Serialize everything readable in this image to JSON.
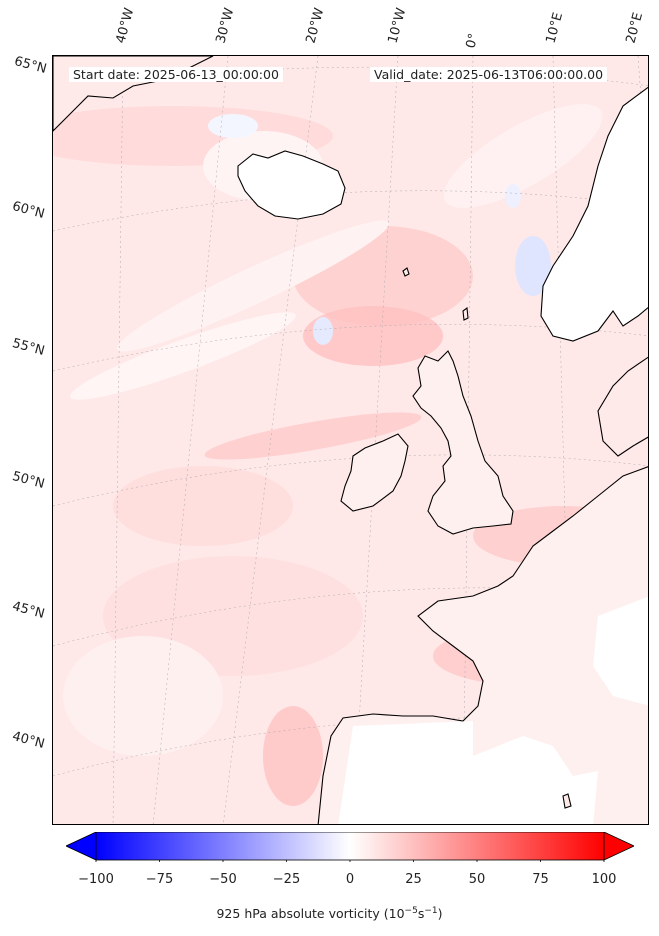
{
  "map": {
    "start_date": "Start date: 2025-06-13_00:00:00",
    "valid_date": "Valid_date: 2025-06-13T06:00:00.00",
    "lon_labels": [
      "40°W",
      "30°W",
      "20°W",
      "10°W",
      "0°",
      "10°E",
      "20°E"
    ],
    "lat_labels": [
      "65°N",
      "60°N",
      "55°N",
      "50°N",
      "45°N",
      "40°N"
    ],
    "colorbar": {
      "min": -100,
      "max": 100,
      "ticks": [
        "−100",
        "−75",
        "−50",
        "−25",
        "0",
        "25",
        "50",
        "75",
        "100"
      ],
      "label": "925 hPa absolute vorticity (10",
      "label_exp1": "−5",
      "label_mid": "s",
      "label_exp2": "−1",
      "label_end": ")",
      "colormap": "bwr",
      "extend": "both"
    },
    "colors": {
      "land_outline": "#000000",
      "field_base": "#ffe4e4",
      "field_strong": "#ffb8b8",
      "field_negative": "#e6eaff",
      "neutral": "#ffffff"
    }
  }
}
